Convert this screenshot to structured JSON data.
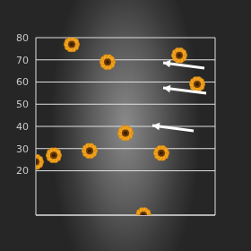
{
  "chart_data": {
    "type": "scatter",
    "x": [
      20,
      40,
      80,
      90,
      50,
      30,
      70,
      10,
      0,
      60
    ],
    "values": [
      77,
      69,
      72,
      59,
      37,
      29,
      28,
      27,
      24,
      0
    ],
    "xlim": [
      0,
      100
    ],
    "ylim": [
      0,
      80
    ],
    "yticks": [
      20,
      30,
      40,
      50,
      60,
      70,
      80
    ],
    "grid": true,
    "color": "#f2a321",
    "marker": "sunflower",
    "tick_labels": "y"
  }
}
